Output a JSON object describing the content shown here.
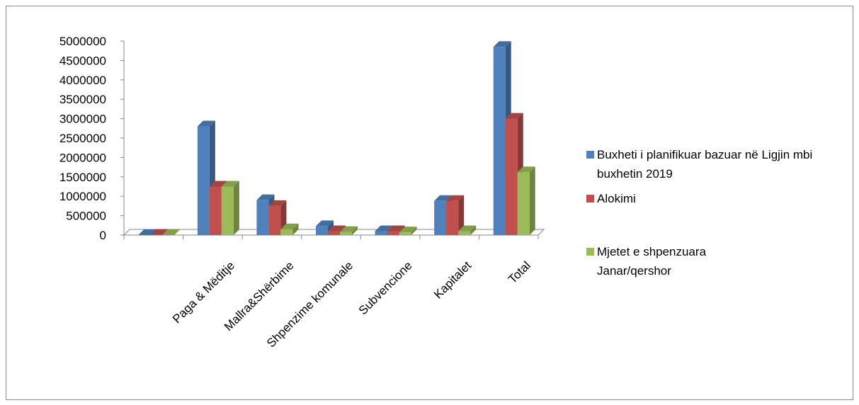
{
  "chart_data": {
    "type": "bar3d",
    "categories": [
      null,
      "Paga & Mëditje",
      "Mallra&Shërbime",
      "Shpenzime komunale",
      "Subvencione",
      "Kapitalet",
      "Total"
    ],
    "series": [
      {
        "name": "Buxheti i planifikuar  bazuar në Ligjin mbi buxhetin 2019",
        "color": "#4f81bd",
        "values": [
          0,
          2800000,
          900000,
          230000,
          100000,
          880000,
          4850000
        ]
      },
      {
        "name": "Alokimi",
        "color": "#c0504d",
        "values": [
          10000,
          1250000,
          750000,
          100000,
          100000,
          880000,
          3000000
        ]
      },
      {
        "name": "Mjetet e shpenzuara Janar/qershor",
        "color": "#9bbb59",
        "values": [
          0,
          1250000,
          150000,
          80000,
          70000,
          100000,
          1620000
        ]
      }
    ],
    "ylim": [
      0,
      5000000
    ],
    "yticks": [
      0,
      500000,
      1000000,
      1500000,
      2000000,
      2500000,
      3000000,
      3500000,
      4000000,
      4500000,
      5000000
    ],
    "legend": "right"
  }
}
